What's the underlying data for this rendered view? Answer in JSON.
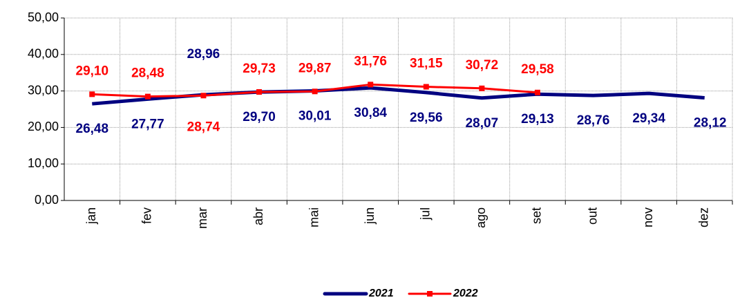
{
  "chart_data": {
    "type": "line",
    "categories": [
      "jan",
      "fev",
      "mar",
      "abr",
      "mai",
      "jun",
      "jul",
      "ago",
      "set",
      "out",
      "nov",
      "dez"
    ],
    "series": [
      {
        "name": "2021",
        "color": "#000080",
        "values": [
          26.48,
          27.77,
          28.96,
          29.7,
          30.01,
          30.84,
          29.56,
          28.07,
          29.13,
          28.76,
          29.34,
          28.12
        ],
        "value_labels": [
          "26,48",
          "27,77",
          "28,96",
          "29,70",
          "30,01",
          "30,84",
          "29,56",
          "28,07",
          "29,13",
          "28,76",
          "29,34",
          "28,12"
        ]
      },
      {
        "name": "2022",
        "color": "#ff0000",
        "values": [
          29.1,
          28.48,
          28.74,
          29.73,
          29.87,
          31.76,
          31.15,
          30.72,
          29.58,
          null,
          null,
          null
        ],
        "value_labels": [
          "29,10",
          "28,48",
          "28,74",
          "29,73",
          "29,87",
          "31,76",
          "31,15",
          "30,72",
          "29,58",
          null,
          null,
          null
        ]
      }
    ],
    "ylim": [
      0,
      50
    ],
    "yticks": [
      {
        "value": 0,
        "label": "0,00"
      },
      {
        "value": 10,
        "label": "10,00"
      },
      {
        "value": 20,
        "label": "20,00"
      },
      {
        "value": 30,
        "label": "30,00"
      },
      {
        "value": 40,
        "label": "40,00"
      },
      {
        "value": 50,
        "label": "50,00"
      }
    ],
    "grid": true
  }
}
